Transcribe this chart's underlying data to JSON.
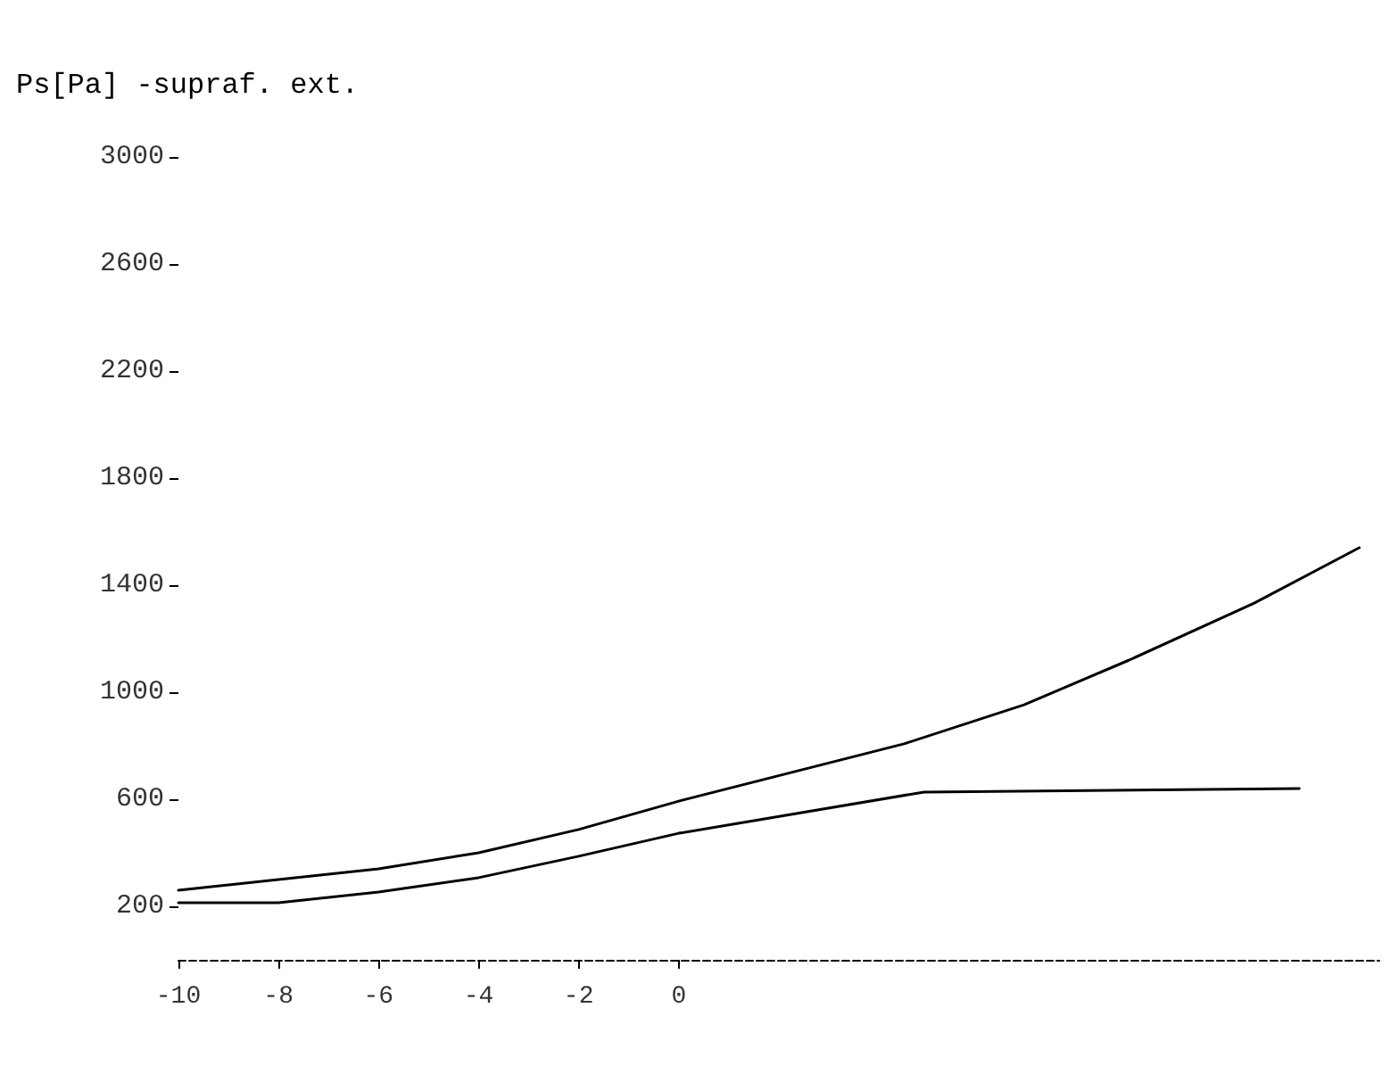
{
  "chart_data": {
    "type": "line",
    "ylabel": "Ps[Pa] -supraf. ext.",
    "series": [
      {
        "color": "#000000",
        "x": [
          -10,
          -8,
          -6,
          -4,
          -2,
          0,
          4.5,
          6.9,
          9,
          11.5,
          13.6
        ],
        "values": [
          260,
          300,
          340,
          400,
          487,
          593,
          807,
          953,
          1120,
          1333,
          1540
        ]
      },
      {
        "color": "#000000",
        "x": [
          -10,
          -8,
          -6,
          -4,
          -2,
          0,
          4.9,
          12.4
        ],
        "values": [
          213,
          213,
          253,
          307,
          387,
          473,
          627,
          640
        ]
      }
    ],
    "xlim": [
      -10,
      14
    ],
    "xticks": [
      -10,
      -8,
      -6,
      -4,
      -2,
      0
    ],
    "ylim": [
      0,
      3000
    ],
    "yticks": [
      200,
      600,
      1000,
      1400,
      1800,
      2200,
      2600,
      3000
    ],
    "marker": "none",
    "line_style": "solid"
  }
}
